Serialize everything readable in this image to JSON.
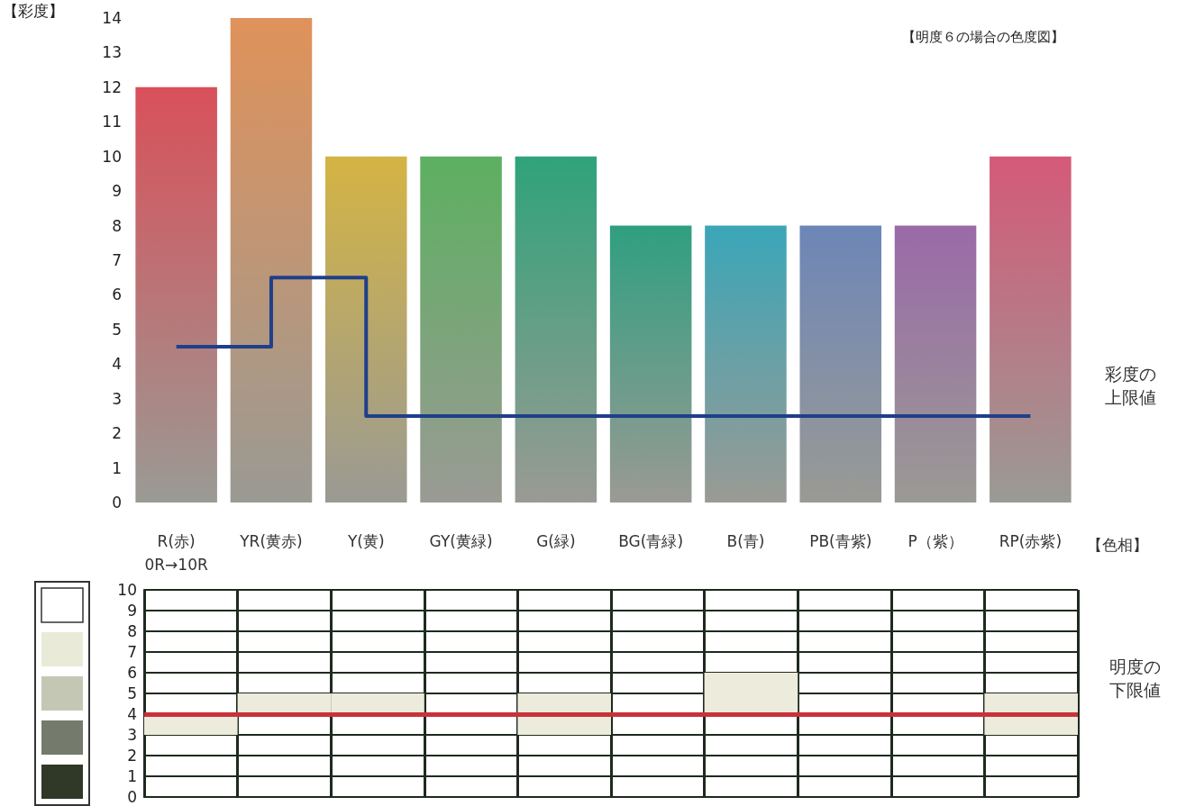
{
  "chart_data": [
    {
      "type": "bar",
      "title": "【明度６の場合の色度図】",
      "ylabel": "【彩度】",
      "xlabel": "【色相】",
      "categories": [
        "R(赤)\n0R→10R",
        "YR(黄赤)",
        "Y(黄)",
        "GY(黄緑)",
        "G(緑)",
        "BG(青緑)",
        "B(青)",
        "PB(青紫)",
        "P（紫）",
        "RP(赤紫)"
      ],
      "values": [
        12,
        14,
        10,
        10,
        10,
        8,
        8,
        8,
        8,
        10
      ],
      "colors": [
        "#d9505a",
        "#e0925a",
        "#d4b444",
        "#5cb060",
        "#2fa37a",
        "#2f9f80",
        "#3aa6b8",
        "#6d86b8",
        "#9a6aa8",
        "#d45a78"
      ],
      "series": [
        {
          "type": "step",
          "name": "彩度の上限値",
          "color": "#1f3f8a",
          "values": [
            4.5,
            6.5,
            2.5,
            2.5,
            2.5,
            2.5,
            2.5,
            2.5,
            2.5,
            2.5
          ]
        }
      ],
      "ylim": [
        0,
        14
      ],
      "yticks": [
        0,
        1,
        2,
        3,
        4,
        5,
        6,
        7,
        8,
        9,
        10,
        11,
        12,
        13,
        14
      ],
      "grid": false,
      "legend": false
    },
    {
      "type": "bar",
      "categories": [
        null,
        null,
        null,
        null,
        null,
        null,
        null,
        null,
        null,
        null
      ],
      "base": [
        3,
        4,
        4,
        null,
        3,
        null,
        4,
        null,
        null,
        3
      ],
      "values": [
        1,
        1,
        1,
        null,
        2,
        null,
        2,
        null,
        null,
        2
      ],
      "color": "#ecebdc",
      "ylim": [
        0,
        10
      ],
      "yticks": [
        0,
        1,
        2,
        3,
        4,
        5,
        6,
        7,
        8,
        9,
        10
      ],
      "grid": true,
      "ref_lines": [
        {
          "axis": "y",
          "value": 4,
          "label": "明度の下限値",
          "color": "#c8323a"
        }
      ]
    }
  ]
}
